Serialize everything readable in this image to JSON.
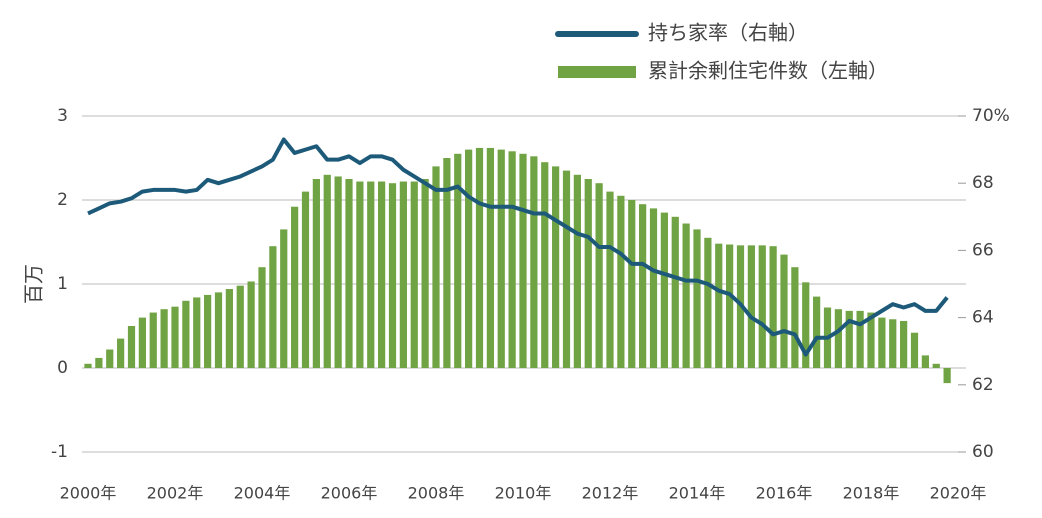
{
  "chart_data": {
    "type": "bar_line",
    "ylabel": "百万",
    "x": [
      2000,
      2000.25,
      2000.5,
      2000.75,
      2001,
      2001.25,
      2001.5,
      2001.75,
      2002,
      2002.25,
      2002.5,
      2002.75,
      2003,
      2003.25,
      2003.5,
      2003.75,
      2004,
      2004.25,
      2004.5,
      2004.75,
      2005,
      2005.25,
      2005.5,
      2005.75,
      2006,
      2006.25,
      2006.5,
      2006.75,
      2007,
      2007.25,
      2007.5,
      2007.75,
      2008,
      2008.25,
      2008.5,
      2008.75,
      2009,
      2009.25,
      2009.5,
      2009.75,
      2010,
      2010.25,
      2010.5,
      2010.75,
      2011,
      2011.25,
      2011.5,
      2011.75,
      2012,
      2012.25,
      2012.5,
      2012.75,
      2013,
      2013.25,
      2013.5,
      2013.75,
      2014,
      2014.25,
      2014.5,
      2014.75,
      2015,
      2015.25,
      2015.5,
      2015.75,
      2016,
      2016.25,
      2016.5,
      2016.75,
      2017,
      2017.25,
      2017.5,
      2017.75,
      2018,
      2018.25,
      2018.5,
      2018.75,
      2019,
      2019.25,
      2019.5,
      2019.75
    ],
    "xlim": [
      2000,
      2020
    ],
    "xticks": [
      {
        "value": 2000,
        "label": "2000年"
      },
      {
        "value": 2002,
        "label": "2002年"
      },
      {
        "value": 2004,
        "label": "2004年"
      },
      {
        "value": 2006,
        "label": "2006年"
      },
      {
        "value": 2008,
        "label": "2008年"
      },
      {
        "value": 2010,
        "label": "2010年"
      },
      {
        "value": 2012,
        "label": "2012年"
      },
      {
        "value": 2014,
        "label": "2014年"
      },
      {
        "value": 2016,
        "label": "2016年"
      },
      {
        "value": 2018,
        "label": "2018年"
      },
      {
        "value": 2020,
        "label": "2020年"
      }
    ],
    "ylim": [
      -1,
      3
    ],
    "yticks": [
      -1,
      0,
      1,
      2,
      3
    ],
    "y2lim": [
      60,
      70
    ],
    "y2ticks": [
      60,
      62,
      64,
      66,
      68,
      {
        "value": 70,
        "label": "70%"
      }
    ],
    "grid": true,
    "series": [
      {
        "name": "持ち家率（右軸）",
        "type": "line",
        "axis": "y2",
        "color": "#1d5a7a",
        "values": [
          67.1,
          67.25,
          67.4,
          67.45,
          67.55,
          67.75,
          67.8,
          67.8,
          67.8,
          67.75,
          67.8,
          68.1,
          68.0,
          68.1,
          68.2,
          68.35,
          68.5,
          68.7,
          69.3,
          68.9,
          69.0,
          69.1,
          68.7,
          68.7,
          68.8,
          68.6,
          68.8,
          68.8,
          68.7,
          68.4,
          68.2,
          68.0,
          67.8,
          67.8,
          67.9,
          67.6,
          67.4,
          67.3,
          67.3,
          67.3,
          67.2,
          67.1,
          67.1,
          66.9,
          66.7,
          66.5,
          66.4,
          66.1,
          66.1,
          65.9,
          65.6,
          65.6,
          65.4,
          65.3,
          65.2,
          65.1,
          65.1,
          65.0,
          64.8,
          64.7,
          64.4,
          64.0,
          63.8,
          63.5,
          63.6,
          63.5,
          62.9,
          63.4,
          63.4,
          63.6,
          63.9,
          63.8,
          64.0,
          64.2,
          64.4,
          64.3,
          64.4,
          64.2,
          64.2,
          64.6
        ]
      },
      {
        "name": "累計余剰住宅件数（左軸）",
        "type": "bar",
        "axis": "y",
        "color": "#70a343",
        "values": [
          0.05,
          0.12,
          0.22,
          0.35,
          0.5,
          0.6,
          0.66,
          0.7,
          0.73,
          0.8,
          0.84,
          0.87,
          0.9,
          0.94,
          0.98,
          1.03,
          1.2,
          1.45,
          1.65,
          1.92,
          2.1,
          2.25,
          2.3,
          2.28,
          2.25,
          2.22,
          2.22,
          2.22,
          2.2,
          2.22,
          2.22,
          2.25,
          2.4,
          2.5,
          2.55,
          2.6,
          2.62,
          2.62,
          2.6,
          2.58,
          2.55,
          2.52,
          2.45,
          2.4,
          2.35,
          2.3,
          2.25,
          2.2,
          2.1,
          2.05,
          2.0,
          1.95,
          1.9,
          1.85,
          1.8,
          1.72,
          1.65,
          1.55,
          1.48,
          1.47,
          1.46,
          1.46,
          1.46,
          1.45,
          1.35,
          1.2,
          1.02,
          0.85,
          0.72,
          0.7,
          0.68,
          0.68,
          0.66,
          0.6,
          0.58,
          0.56,
          0.42,
          0.15,
          0.05,
          -0.18
        ]
      }
    ]
  }
}
